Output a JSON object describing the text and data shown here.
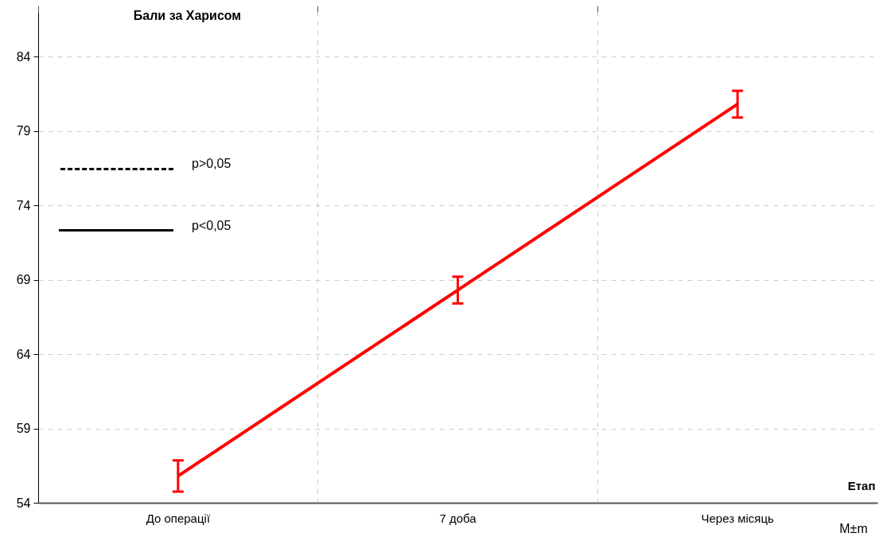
{
  "chart_data": {
    "type": "line",
    "ylabel": "Бали за Харисом",
    "xlabel": "Етап",
    "categories": [
      "До операції",
      "7 доба",
      "Через місяць"
    ],
    "color": "#ff0000",
    "values": [
      55.8,
      68.3,
      80.8
    ],
    "errors": [
      1.05,
      0.9,
      0.9
    ],
    "ylim": [
      54,
      87
    ],
    "yticks": [
      54,
      59,
      64,
      69,
      74,
      79,
      84
    ],
    "grid": true,
    "line_style": "solid",
    "annotations": [
      "p>0,05",
      "p<0,05",
      "M±m"
    ]
  }
}
